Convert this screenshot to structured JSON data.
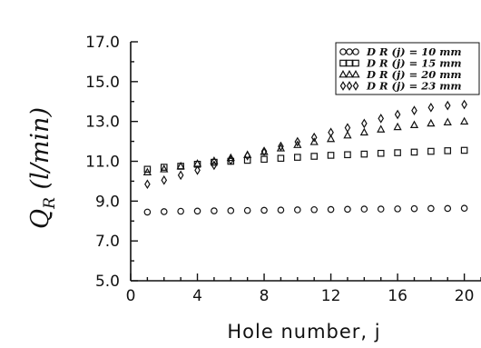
{
  "chart_data": {
    "type": "scatter",
    "ylabel": "Q_R (l/min)",
    "ylabel_main": "Q",
    "ylabel_sub": "R",
    "ylabel_rest": " (l/min)",
    "xlabel": "Hole number, j",
    "xlim": [
      0,
      21
    ],
    "ylim": [
      5.0,
      17.0
    ],
    "xticks": [
      0,
      4,
      8,
      12,
      16,
      20
    ],
    "yticks": [
      5.0,
      7.0,
      9.0,
      11.0,
      13.0,
      15.0,
      17.0
    ],
    "ytick_labels": [
      "5.0",
      "7.0",
      "9.0",
      "11.0",
      "13.0",
      "15.0",
      "17.0"
    ],
    "xtick_labels": [
      "0",
      "4",
      "8",
      "12",
      "16",
      "20"
    ],
    "legend_position": "top-right",
    "x": [
      1,
      2,
      3,
      4,
      5,
      6,
      7,
      8,
      9,
      10,
      11,
      12,
      13,
      14,
      15,
      16,
      17,
      18,
      19,
      20
    ],
    "series": [
      {
        "name": "D_R(j) = 10 mm",
        "legend_label": "D R (j) = 10 mm",
        "marker": "circle",
        "values": [
          8.45,
          8.47,
          8.49,
          8.5,
          8.51,
          8.52,
          8.53,
          8.54,
          8.55,
          8.56,
          8.57,
          8.58,
          8.59,
          8.6,
          8.6,
          8.61,
          8.62,
          8.63,
          8.63,
          8.64
        ]
      },
      {
        "name": "D_R(j) = 15 mm",
        "legend_label": "D R (j) = 15 mm",
        "marker": "square",
        "values": [
          10.6,
          10.7,
          10.75,
          10.85,
          10.95,
          11.0,
          11.05,
          11.1,
          11.15,
          11.2,
          11.25,
          11.3,
          11.33,
          11.36,
          11.4,
          11.43,
          11.46,
          11.5,
          11.53,
          11.55
        ]
      },
      {
        "name": "D_R(j) = 20 mm",
        "legend_label": "D R (j) = 20 mm",
        "marker": "triangle",
        "values": [
          10.45,
          10.6,
          10.75,
          10.88,
          11.02,
          11.17,
          11.32,
          11.47,
          11.65,
          11.82,
          11.97,
          12.12,
          12.3,
          12.45,
          12.6,
          12.72,
          12.82,
          12.9,
          12.96,
          13.0
        ]
      },
      {
        "name": "D_R(j) = 23 mm",
        "legend_label": "D R (j) = 23 mm",
        "marker": "diamond",
        "values": [
          9.85,
          10.05,
          10.3,
          10.55,
          10.8,
          11.05,
          11.28,
          11.5,
          11.75,
          11.98,
          12.2,
          12.45,
          12.68,
          12.9,
          13.15,
          13.35,
          13.55,
          13.7,
          13.8,
          13.85
        ]
      }
    ]
  }
}
